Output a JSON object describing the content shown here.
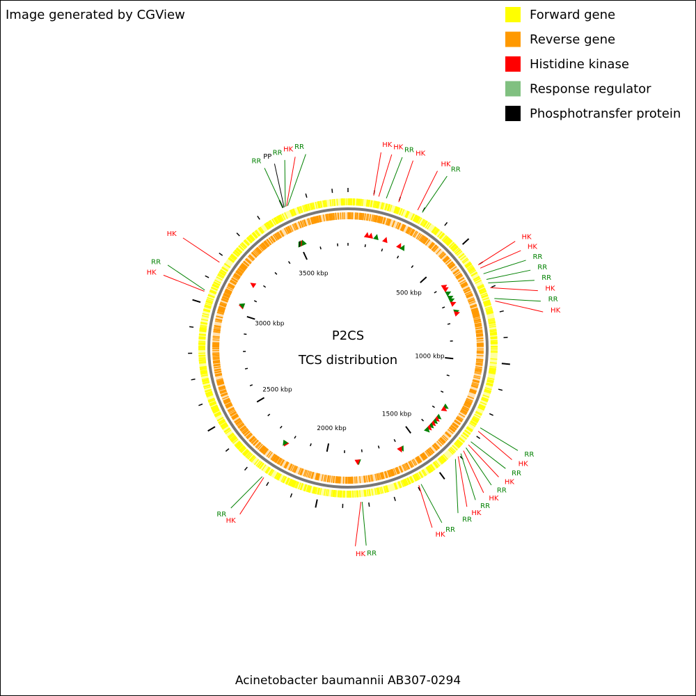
{
  "header": "Image generated by CGView",
  "legend": [
    {
      "label": "Forward gene",
      "color": "#ffff00"
    },
    {
      "label": "Reverse gene",
      "color": "#ff9900"
    },
    {
      "label": "Histidine kinase",
      "color": "#ff0000"
    },
    {
      "label": "Response regulator",
      "color": "#80c080"
    },
    {
      "label": "Phosphotransfer protein",
      "color": "#000000"
    }
  ],
  "map": {
    "title": "P2CS",
    "subtitle": "TCS distribution",
    "lim": [
      0,
      3760
    ],
    "ticks": [
      {
        "value": 500,
        "label": "500 kbp"
      },
      {
        "value": 1000,
        "label": "1000 kbp"
      },
      {
        "value": 1500,
        "label": "1500 kbp"
      },
      {
        "value": 2000,
        "label": "2000 kbp"
      },
      {
        "value": 2500,
        "label": "2500 kbp"
      },
      {
        "value": 3000,
        "label": "3000 kbp"
      },
      {
        "value": 3500,
        "label": "3500 kbp"
      }
    ]
  },
  "features": [
    {
      "label": "HK",
      "position": 100,
      "color": "#ff0000"
    },
    {
      "label": "HK",
      "position": 120,
      "color": "#ff0000"
    },
    {
      "label": "RR",
      "position": 150,
      "color": "#008000"
    },
    {
      "label": "HK",
      "position": 200,
      "color": "#ff0000"
    },
    {
      "label": "HK",
      "position": 280,
      "color": "#ff0000"
    },
    {
      "label": "RR",
      "position": 300,
      "color": "#008000"
    },
    {
      "label": "HK",
      "position": 600,
      "color": "#ff0000"
    },
    {
      "label": "HK",
      "position": 615,
      "color": "#ff0000"
    },
    {
      "label": "RR",
      "position": 640,
      "color": "#008000"
    },
    {
      "label": "RR",
      "position": 665,
      "color": "#008000"
    },
    {
      "label": "RR",
      "position": 680,
      "color": "#008000"
    },
    {
      "label": "HK",
      "position": 700,
      "color": "#ff0000"
    },
    {
      "label": "RR",
      "position": 745,
      "color": "#008000"
    },
    {
      "label": "HK",
      "position": 755,
      "color": "#ff0000"
    },
    {
      "label": "RR",
      "position": 1265,
      "color": "#008000"
    },
    {
      "label": "HK",
      "position": 1280,
      "color": "#ff0000"
    },
    {
      "label": "RR",
      "position": 1330,
      "color": "#008000"
    },
    {
      "label": "HK",
      "position": 1345,
      "color": "#ff0000"
    },
    {
      "label": "RR",
      "position": 1360,
      "color": "#008000"
    },
    {
      "label": "HK",
      "position": 1375,
      "color": "#ff0000"
    },
    {
      "label": "RR",
      "position": 1390,
      "color": "#008000"
    },
    {
      "label": "HK",
      "position": 1405,
      "color": "#ff0000"
    },
    {
      "label": "RR",
      "position": 1420,
      "color": "#008000"
    },
    {
      "label": "RR",
      "position": 1585,
      "color": "#008000"
    },
    {
      "label": "HK",
      "position": 1595,
      "color": "#ff0000"
    },
    {
      "label": "RR",
      "position": 1825,
      "color": "#008000"
    },
    {
      "label": "HK",
      "position": 1830,
      "color": "#ff0000"
    },
    {
      "label": "HK",
      "position": 2225,
      "color": "#ff0000"
    },
    {
      "label": "RR",
      "position": 2232,
      "color": "#008000"
    },
    {
      "label": "HK",
      "position": 3045,
      "color": "#ff0000"
    },
    {
      "label": "RR",
      "position": 3050,
      "color": "#008000"
    },
    {
      "label": "HK",
      "position": 3172,
      "color": "#ff0000"
    },
    {
      "label": "RR",
      "position": 3500,
      "color": "#008000"
    },
    {
      "label": "PP",
      "position": 3505,
      "color": "#000000"
    },
    {
      "label": "RR",
      "position": 3510,
      "color": "#008000"
    },
    {
      "label": "HK",
      "position": 3515,
      "color": "#ff0000"
    },
    {
      "label": "RR",
      "position": 3520,
      "color": "#008000"
    }
  ],
  "footer": "Acinetobacter baumannii AB307-0294"
}
